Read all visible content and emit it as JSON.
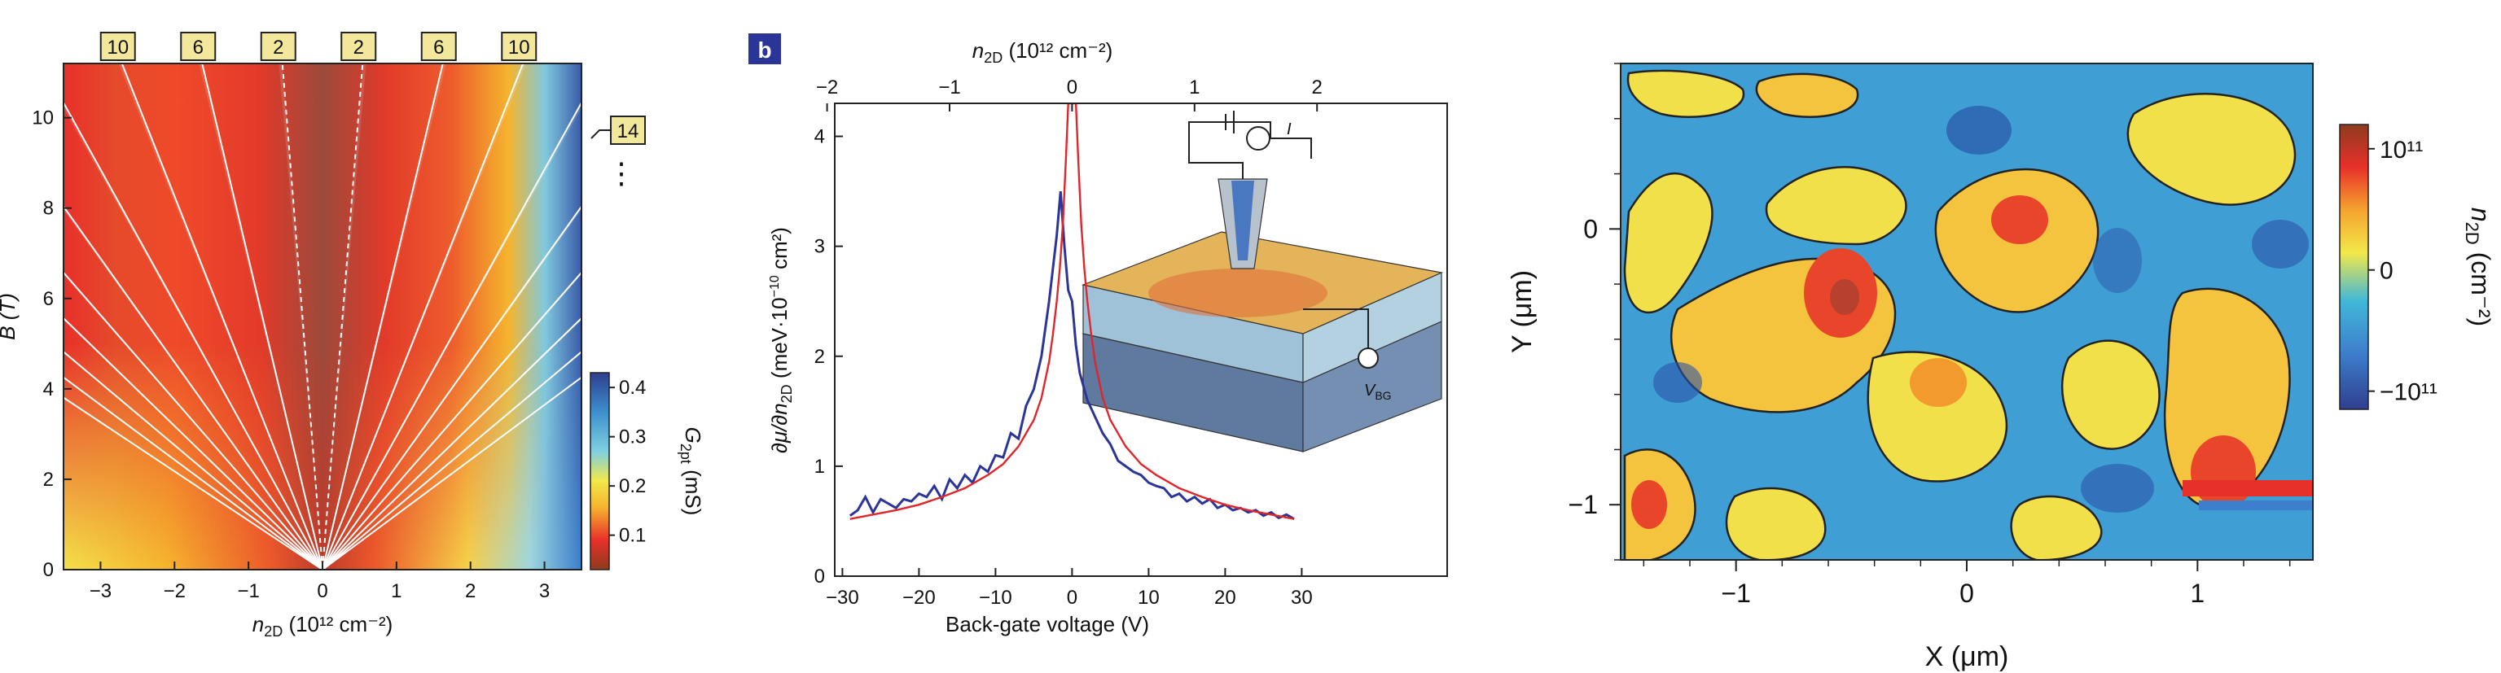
{
  "chart_data": [
    {
      "type": "heatmap",
      "xlabel_main": "n",
      "xlabel_sub": "2D",
      "xlabel_unit": "(10¹² cm⁻²)",
      "ylabel": "B (T)",
      "x_ticks": [
        "−3",
        "−2",
        "−1",
        "0",
        "1",
        "2",
        "3"
      ],
      "x_tick_values": [
        -3,
        -2,
        -1,
        0,
        1,
        2,
        3
      ],
      "y_ticks": [
        "0",
        "2",
        "4",
        "6",
        "8",
        "10"
      ],
      "y_tick_values": [
        0,
        2,
        4,
        6,
        8,
        10
      ],
      "xlim": [
        -3.5,
        3.5
      ],
      "ylim": [
        0,
        11.2
      ],
      "colorbar": {
        "label_main": "G",
        "label_sub": "2pt",
        "label_unit": "(mS)",
        "ticks": [
          "0.1",
          "0.2",
          "0.3",
          "0.4"
        ],
        "tick_values": [
          0.1,
          0.2,
          0.3,
          0.4
        ],
        "range": [
          0.03,
          0.43
        ],
        "colors": [
          "#8e3b1e",
          "#e8302a",
          "#f5b52e",
          "#f2e84a",
          "#7fd0e0",
          "#3d8fce",
          "#2f3f8f"
        ]
      },
      "filling_factors": [
        {
          "label": "10",
          "nu": -10
        },
        {
          "label": "6",
          "nu": -6
        },
        {
          "label": "2",
          "nu": -2
        },
        {
          "label": "2",
          "nu": 2
        },
        {
          "label": "6",
          "nu": 6
        },
        {
          "label": "10",
          "nu": 10
        },
        {
          "label": "14",
          "nu": 14
        }
      ],
      "extra_fan_nu": [
        -38,
        -34,
        -30,
        -26,
        -22,
        -18,
        -14,
        18,
        22,
        26,
        30,
        34
      ]
    },
    {
      "type": "line",
      "panel_label": "b",
      "top_xlabel_main": "n",
      "top_xlabel_sub": "2D",
      "top_xlabel_unit": "(10¹² cm⁻²)",
      "top_ticks": [
        "−2",
        "−1",
        "0",
        "1",
        "2"
      ],
      "top_tick_values": [
        -2,
        -1,
        0,
        1,
        2
      ],
      "xlabel": "Back-gate voltage (V)",
      "ylabel_parts": [
        "∂μ/∂n",
        "2D",
        " (meV·10",
        "−10",
        " cm²)"
      ],
      "x_ticks": [
        "−30",
        "−20",
        "−10",
        "0",
        "10",
        "20",
        "30"
      ],
      "x_tick_values": [
        -30,
        -20,
        -10,
        0,
        10,
        20,
        30
      ],
      "y_ticks": [
        "0",
        "1",
        "2",
        "3",
        "4"
      ],
      "y_tick_values": [
        0,
        1,
        2,
        3,
        4
      ],
      "xlim": [
        -31,
        49
      ],
      "ylim": [
        0,
        4.3
      ],
      "series": [
        {
          "color": "#2b3598",
          "x": [
            -29,
            -28,
            -27,
            -26,
            -25,
            -24,
            -23,
            -22,
            -21,
            -20,
            -19,
            -18,
            -17,
            -16,
            -15,
            -14,
            -13,
            -12,
            -11,
            -10,
            -9,
            -8,
            -7,
            -6,
            -5,
            -4,
            -3,
            -2.5,
            -2,
            -1.5,
            -1,
            -0.5,
            0,
            0.5,
            1,
            2,
            3,
            4,
            5,
            6,
            7,
            8,
            9,
            10,
            11,
            12,
            13,
            14,
            15,
            16,
            17,
            18,
            19,
            20,
            21,
            22,
            23,
            24,
            25,
            26,
            27,
            28,
            29
          ],
          "y": [
            0.55,
            0.6,
            0.72,
            0.58,
            0.7,
            0.66,
            0.62,
            0.7,
            0.68,
            0.75,
            0.72,
            0.82,
            0.7,
            0.88,
            0.8,
            0.92,
            0.85,
            1.0,
            0.95,
            1.1,
            1.08,
            1.3,
            1.25,
            1.55,
            1.7,
            2.0,
            2.5,
            2.8,
            3.1,
            3.5,
            3.0,
            2.6,
            2.5,
            2.1,
            1.85,
            1.6,
            1.45,
            1.3,
            1.2,
            1.05,
            1.0,
            0.95,
            0.92,
            0.85,
            0.82,
            0.8,
            0.72,
            0.75,
            0.68,
            0.72,
            0.66,
            0.7,
            0.62,
            0.65,
            0.6,
            0.62,
            0.58,
            0.6,
            0.55,
            0.58,
            0.53,
            0.56,
            0.52
          ]
        },
        {
          "color": "#e0252b",
          "x": [
            -29,
            -26,
            -23,
            -20,
            -17,
            -14,
            -11,
            -9,
            -7,
            -5,
            -4,
            -3,
            -2.5,
            -2,
            -1.6,
            -1.2,
            -0.8,
            -0.5,
            -0.3,
            -0.1,
            0.1,
            0.3,
            0.5,
            0.8,
            1.2,
            1.6,
            2,
            2.5,
            3,
            4,
            5,
            7,
            9,
            11,
            14,
            17,
            20,
            23,
            26,
            29
          ],
          "y": [
            0.52,
            0.56,
            0.6,
            0.65,
            0.72,
            0.8,
            0.92,
            1.02,
            1.18,
            1.42,
            1.62,
            1.95,
            2.2,
            2.5,
            2.8,
            3.2,
            3.8,
            4.3,
            4.3,
            4.3,
            4.3,
            4.3,
            4.3,
            3.8,
            3.2,
            2.8,
            2.5,
            2.2,
            1.95,
            1.62,
            1.42,
            1.18,
            1.02,
            0.92,
            0.8,
            0.72,
            0.65,
            0.6,
            0.56,
            0.52
          ]
        }
      ],
      "inset_labels": {
        "vbg": "V",
        "vbg_sub": "BG",
        "current": "I"
      }
    },
    {
      "type": "heatmap",
      "xlabel": "X (μm)",
      "ylabel": "Y (μm)",
      "x_ticks": [
        "−1",
        "0",
        "1"
      ],
      "x_tick_values": [
        -1,
        0,
        1
      ],
      "y_ticks": [
        "0",
        "−1"
      ],
      "y_tick_values": [
        0,
        -1
      ],
      "xlim": [
        -1.5,
        1.5
      ],
      "ylim": [
        -1.2,
        0.6
      ],
      "colorbar": {
        "label_main": "n",
        "label_sub": "2D",
        "label_unit": "(cm⁻²)",
        "ticks": [
          "10¹¹",
          "0",
          "−10¹¹"
        ],
        "tick_values": [
          1,
          0,
          -1
        ],
        "range": [
          -1.15,
          1.2
        ],
        "colors": [
          "#2f3f8f",
          "#3d7fcc",
          "#41b7d8",
          "#f2e84a",
          "#f5a32e",
          "#e8302a",
          "#8e3b1e"
        ]
      }
    }
  ]
}
